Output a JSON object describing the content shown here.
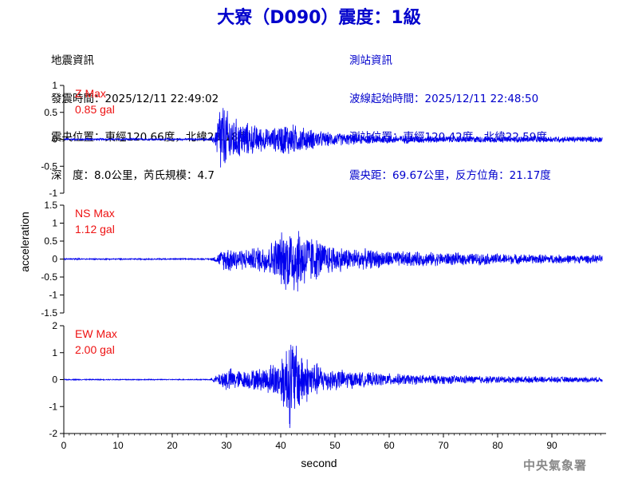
{
  "title": "大寮（D090）震度：1級",
  "quake_info": {
    "heading": "地震資訊",
    "time": "發震時間：2025/12/11 22:49:02",
    "epicenter": "震央位置：東經120.66度，北緯23.18度",
    "depth_magnitude": "深　度：8.0公里，芮氏規模：4.7"
  },
  "station_info": {
    "heading": "測站資訊",
    "wave_start": "波線起始時間：2025/12/11 22:48:50",
    "location": "測站位置：東經120.42度，北緯22.59度",
    "distance": "震央距：69.67公里，反方位角：21.17度"
  },
  "watermark": "中央氣象署",
  "colors": {
    "title": "#0000cc",
    "trace": "#0000ee",
    "max_label": "#ee1111",
    "axis": "#000000"
  },
  "chart_data": {
    "type": "line",
    "xlabel": "second",
    "ylabel": "acceleration",
    "xlim": [
      0,
      100
    ],
    "x_ticks": [
      "0",
      "10",
      "20",
      "30",
      "40",
      "50",
      "60",
      "70",
      "80",
      "90"
    ],
    "grid": false,
    "panels": [
      {
        "name": "Z",
        "max_label": "Z Max",
        "max_value": "0.85 gal",
        "ylim": [
          -1,
          1
        ],
        "y_ticks": [
          "-1",
          "-0.5",
          "0",
          "0.5",
          "1"
        ],
        "envelope": [
          [
            0,
            0.02
          ],
          [
            27,
            0.02
          ],
          [
            28,
            0.15
          ],
          [
            28.8,
            0.85
          ],
          [
            30,
            0.6
          ],
          [
            32,
            0.4
          ],
          [
            35,
            0.3
          ],
          [
            38,
            0.2
          ],
          [
            41,
            0.35
          ],
          [
            44,
            0.25
          ],
          [
            48,
            0.15
          ],
          [
            55,
            0.1
          ],
          [
            70,
            0.07
          ],
          [
            100,
            0.06
          ]
        ]
      },
      {
        "name": "NS",
        "max_label": "NS Max",
        "max_value": "1.12 gal",
        "ylim": [
          -1.5,
          1.5
        ],
        "y_ticks": [
          "-1.5",
          "-1",
          "-0.5",
          "0",
          "0.5",
          "1",
          "1.5"
        ],
        "envelope": [
          [
            0,
            0.02
          ],
          [
            27,
            0.02
          ],
          [
            28,
            0.1
          ],
          [
            30,
            0.4
          ],
          [
            34,
            0.3
          ],
          [
            38,
            0.5
          ],
          [
            41,
            0.95
          ],
          [
            42.5,
            1.12
          ],
          [
            45,
            0.8
          ],
          [
            48,
            0.5
          ],
          [
            52,
            0.35
          ],
          [
            60,
            0.25
          ],
          [
            70,
            0.2
          ],
          [
            85,
            0.15
          ],
          [
            100,
            0.12
          ]
        ]
      },
      {
        "name": "EW",
        "max_label": "EW Max",
        "max_value": "2.00 gal",
        "ylim": [
          -2,
          2
        ],
        "y_ticks": [
          "-2",
          "-1",
          "0",
          "1",
          "2"
        ],
        "envelope": [
          [
            0,
            0.02
          ],
          [
            27,
            0.02
          ],
          [
            28,
            0.15
          ],
          [
            30,
            0.5
          ],
          [
            33,
            0.35
          ],
          [
            37,
            0.5
          ],
          [
            40,
            0.9
          ],
          [
            41.8,
            2.0
          ],
          [
            43,
            1.4
          ],
          [
            45,
            0.9
          ],
          [
            48,
            0.5
          ],
          [
            55,
            0.3
          ],
          [
            65,
            0.2
          ],
          [
            80,
            0.15
          ],
          [
            100,
            0.1
          ]
        ]
      }
    ]
  }
}
